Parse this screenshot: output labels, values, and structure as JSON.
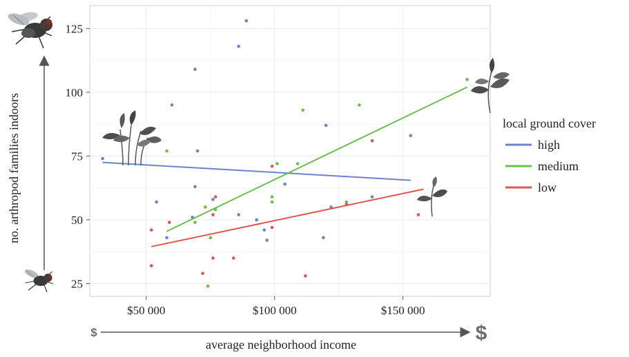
{
  "chart_data": {
    "type": "scatter",
    "xlabel": "average neighborhood income",
    "ylabel": "no. arthropod families indoors",
    "xlim": [
      28000,
      184000
    ],
    "ylim": [
      20,
      134
    ],
    "x_ticks": [
      50000,
      100000,
      150000
    ],
    "x_tick_labels": [
      "$50 000",
      "$100 000",
      "$150 000"
    ],
    "y_ticks": [
      25,
      50,
      75,
      100,
      125
    ],
    "y_tick_labels": [
      "25",
      "50",
      "75",
      "100",
      "125"
    ],
    "grid": true,
    "legend": {
      "title": "local ground cover",
      "position": "right"
    },
    "annotations": {
      "x_arrow_low": "$",
      "x_arrow_high": "$"
    },
    "series": [
      {
        "name": "high",
        "color": "#6b83c9",
        "points": [
          [
            33000,
            74
          ],
          [
            54000,
            57
          ],
          [
            58000,
            43
          ],
          [
            60000,
            95
          ],
          [
            68000,
            51
          ],
          [
            69000,
            109
          ],
          [
            69000,
            63
          ],
          [
            70000,
            77
          ],
          [
            76000,
            58
          ],
          [
            86000,
            118
          ],
          [
            86000,
            52
          ],
          [
            89000,
            128
          ],
          [
            93000,
            50
          ],
          [
            96000,
            46
          ],
          [
            97000,
            42
          ],
          [
            104000,
            64
          ],
          [
            119000,
            43
          ],
          [
            120000,
            87
          ],
          [
            122000,
            55
          ],
          [
            138000,
            59
          ],
          [
            153000,
            83
          ]
        ],
        "fit": [
          [
            33000,
            72.5
          ],
          [
            153000,
            65.5
          ]
        ]
      },
      {
        "name": "medium",
        "color": "#6cc04a",
        "points": [
          [
            58000,
            77
          ],
          [
            69000,
            49
          ],
          [
            73000,
            55
          ],
          [
            74000,
            24
          ],
          [
            75000,
            43
          ],
          [
            77000,
            54
          ],
          [
            99000,
            59
          ],
          [
            99000,
            57
          ],
          [
            101000,
            72
          ],
          [
            109000,
            72
          ],
          [
            111000,
            93
          ],
          [
            128000,
            57
          ],
          [
            133000,
            95
          ],
          [
            175000,
            105
          ]
        ],
        "fit": [
          [
            58000,
            45.5
          ],
          [
            175000,
            102
          ]
        ]
      },
      {
        "name": "low",
        "color": "#e0564f",
        "points": [
          [
            52000,
            46
          ],
          [
            52000,
            32
          ],
          [
            59000,
            49
          ],
          [
            72000,
            29
          ],
          [
            76000,
            52
          ],
          [
            76000,
            35
          ],
          [
            77000,
            59
          ],
          [
            84000,
            35
          ],
          [
            99000,
            71
          ],
          [
            99000,
            47
          ],
          [
            112000,
            28
          ],
          [
            128000,
            56
          ],
          [
            138000,
            81
          ],
          [
            156000,
            52
          ]
        ],
        "fit": [
          [
            52000,
            39.5
          ],
          [
            158000,
            62
          ]
        ]
      }
    ]
  }
}
